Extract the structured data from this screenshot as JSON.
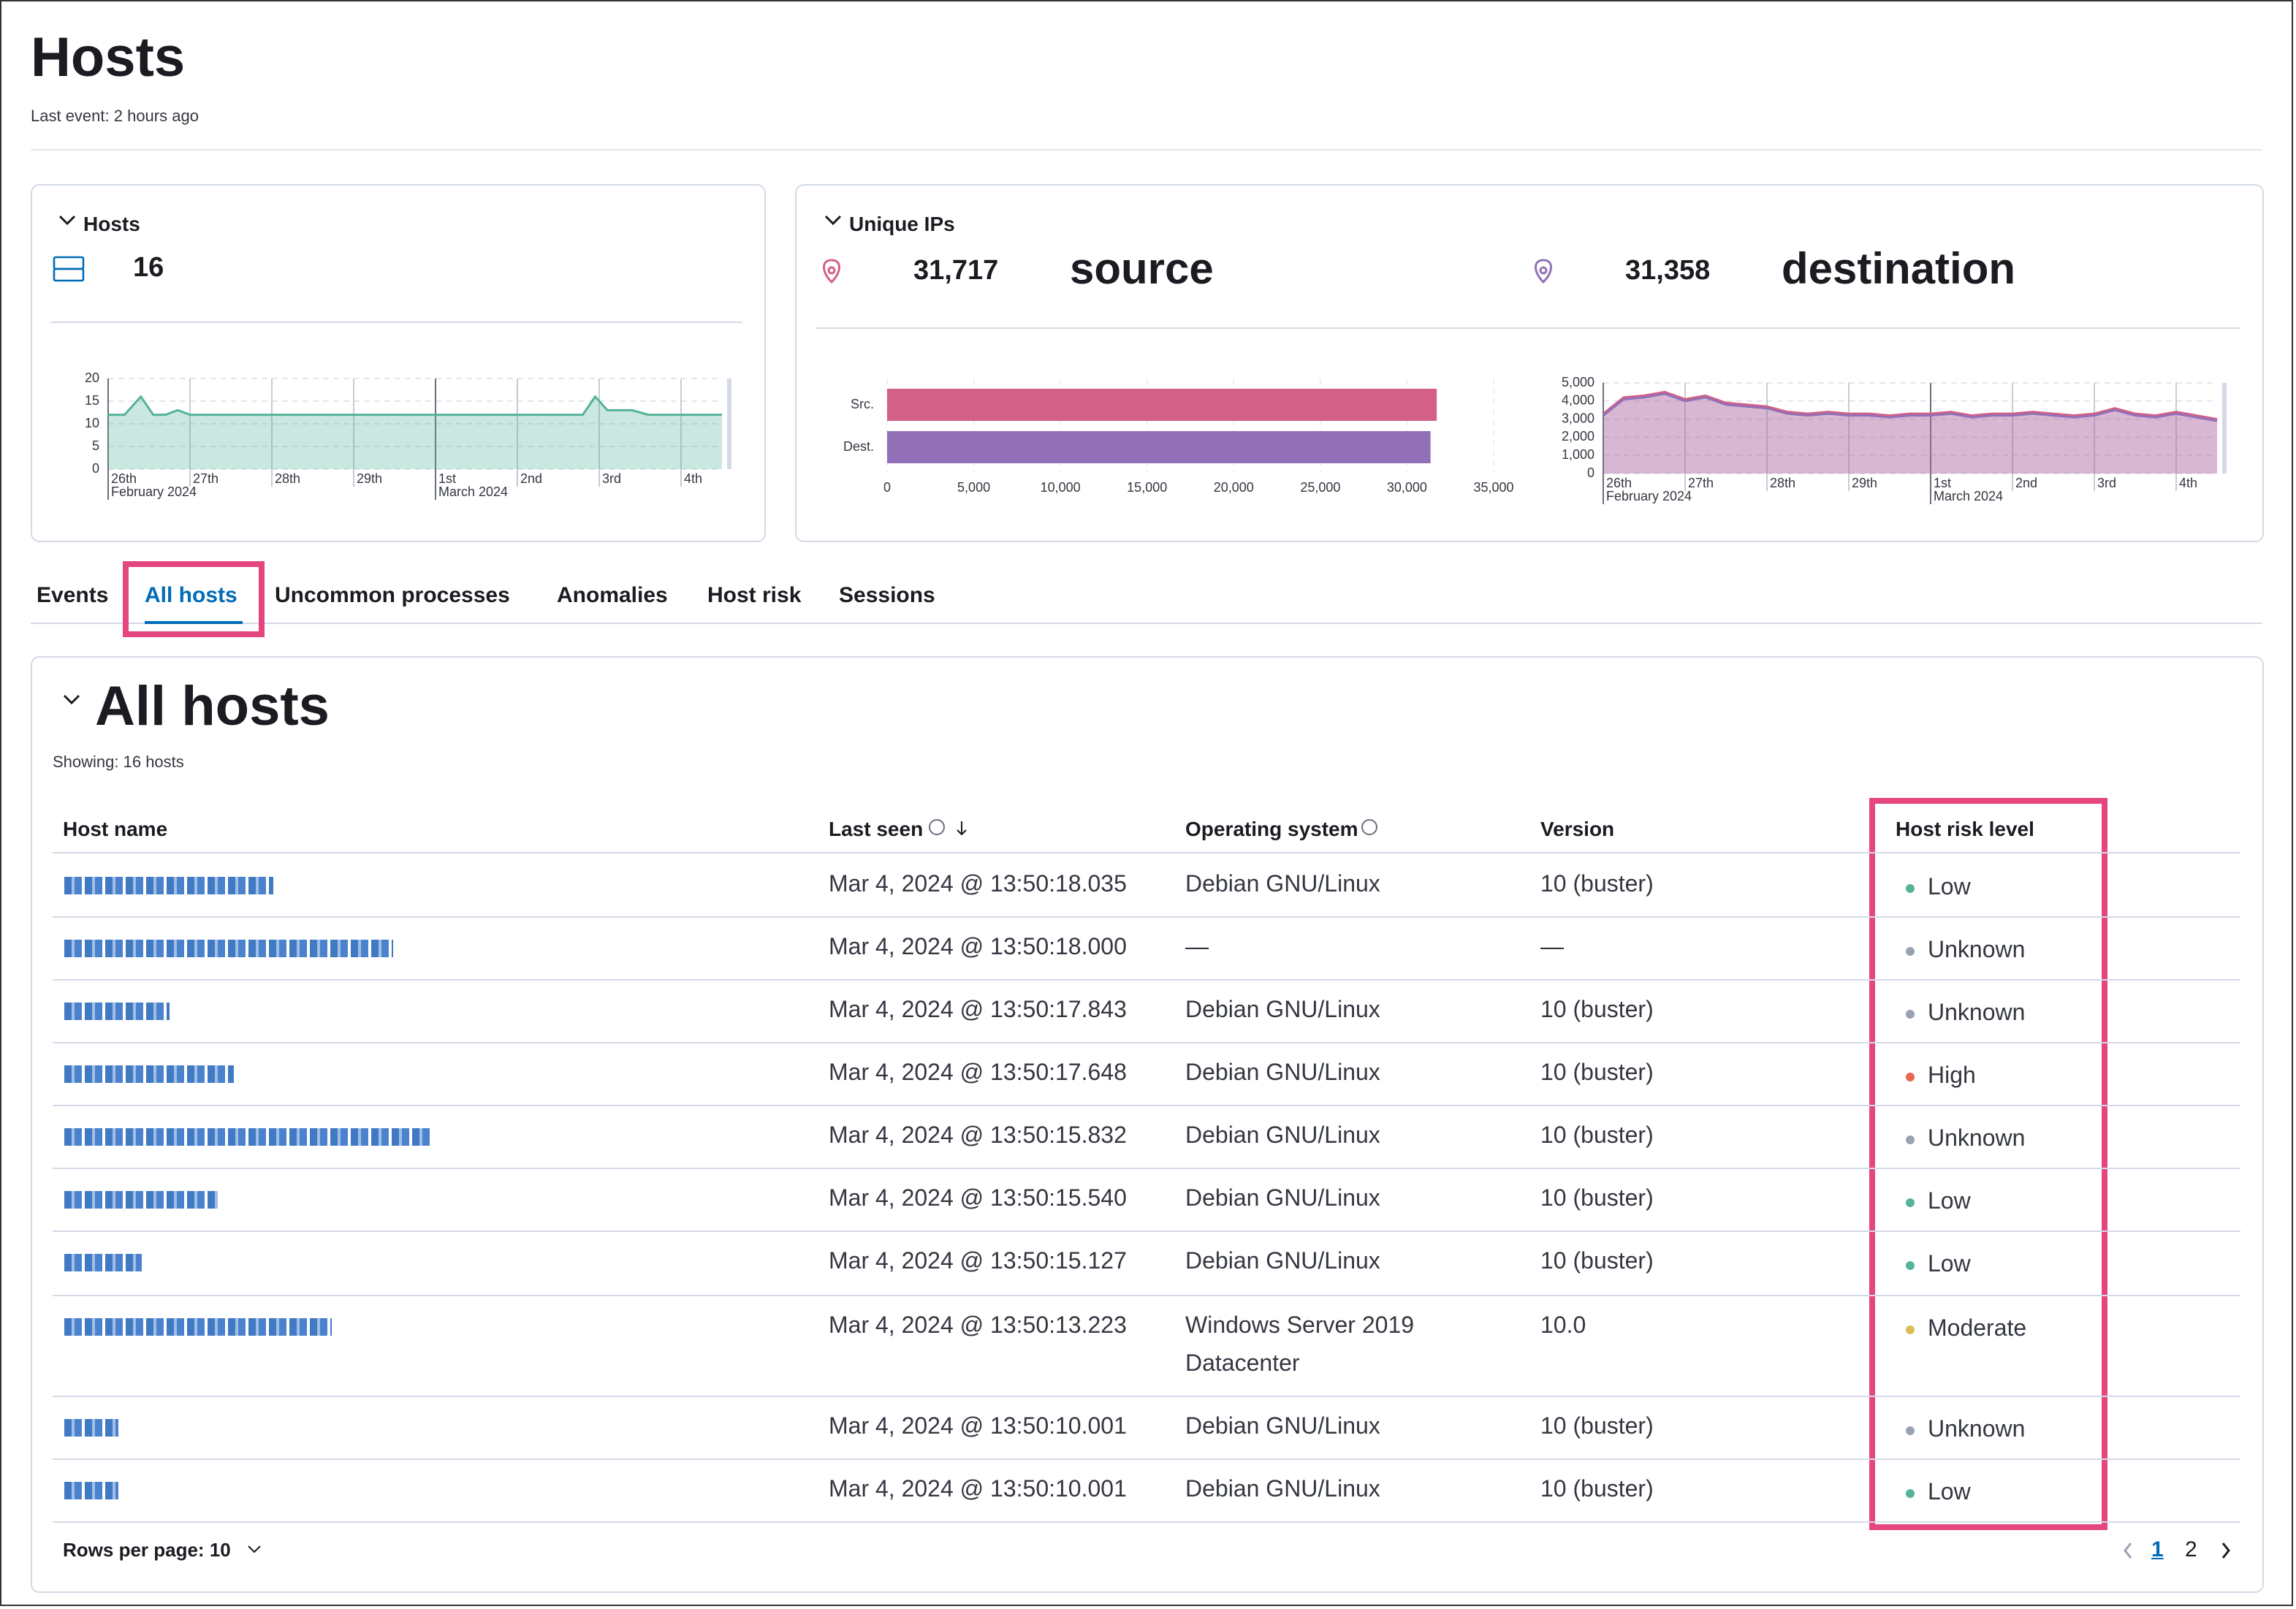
{
  "header": {
    "title": "Hosts",
    "subtitle": "Last event: 2 hours ago"
  },
  "hosts_panel": {
    "title": "Hosts",
    "value": "16"
  },
  "ips_panel": {
    "title": "Unique IPs",
    "source_value": "31,717",
    "source_label": "source",
    "destination_value": "31,358",
    "destination_label": "destination"
  },
  "chart_data": [
    {
      "type": "area",
      "color": "#54b399",
      "xlim": [
        0,
        7.5
      ],
      "ylim": [
        0,
        20
      ],
      "yticks": [
        0,
        5,
        10,
        15,
        20
      ],
      "xticks": [
        {
          "value": 0,
          "label": "26th"
        },
        {
          "value": 1,
          "label": "27th"
        },
        {
          "value": 2,
          "label": "28th"
        },
        {
          "value": 3,
          "label": "29th"
        },
        {
          "value": 4,
          "label": "1st"
        },
        {
          "value": 5,
          "label": "2nd"
        },
        {
          "value": 6,
          "label": "3rd"
        },
        {
          "value": 7,
          "label": "4th"
        }
      ],
      "month_labels": [
        {
          "value": 0,
          "label": "February 2024"
        },
        {
          "value": 4,
          "label": "March 2024"
        }
      ],
      "x": [
        0,
        0.2,
        0.4,
        0.55,
        0.7,
        0.85,
        1.0,
        2,
        3,
        4,
        5,
        5.8,
        5.95,
        6.1,
        6.4,
        6.6,
        7,
        7.5
      ],
      "values": [
        12,
        12,
        16,
        12,
        12,
        13,
        12,
        12,
        12,
        12,
        12,
        12,
        16,
        13,
        13,
        12,
        12,
        12
      ]
    },
    {
      "type": "hbar",
      "categories": [
        "Src.",
        "Dest."
      ],
      "values": [
        31717,
        31358
      ],
      "colors": [
        "#d36086",
        "#9170b8"
      ],
      "xlim": [
        0,
        35000
      ],
      "xticks": [
        0,
        {
          "value": 5000,
          "label": "5,000"
        },
        {
          "value": 10000,
          "label": "10,000"
        },
        {
          "value": 15000,
          "label": "15,000"
        },
        {
          "value": 20000,
          "label": "20,000"
        },
        {
          "value": 25000,
          "label": "25,000"
        },
        {
          "value": 30000,
          "label": "30,000"
        },
        {
          "value": 35000,
          "label": "35,000"
        }
      ]
    },
    {
      "type": "area",
      "xlim": [
        0,
        7.5
      ],
      "ylim": [
        0,
        5000
      ],
      "yticks": [
        0,
        {
          "value": 1000,
          "label": "1,000"
        },
        {
          "value": 2000,
          "label": "2,000"
        },
        {
          "value": 3000,
          "label": "3,000"
        },
        {
          "value": 4000,
          "label": "4,000"
        },
        {
          "value": 5000,
          "label": "5,000"
        }
      ],
      "xticks": [
        {
          "value": 0,
          "label": "26th"
        },
        {
          "value": 1,
          "label": "27th"
        },
        {
          "value": 2,
          "label": "28th"
        },
        {
          "value": 3,
          "label": "29th"
        },
        {
          "value": 4,
          "label": "1st"
        },
        {
          "value": 5,
          "label": "2nd"
        },
        {
          "value": 6,
          "label": "3rd"
        },
        {
          "value": 7,
          "label": "4th"
        }
      ],
      "month_labels": [
        {
          "value": 0,
          "label": "February 2024"
        },
        {
          "value": 4,
          "label": "March 2024"
        }
      ],
      "x": [
        0,
        0.25,
        0.5,
        0.75,
        1,
        1.25,
        1.5,
        1.75,
        2,
        2.25,
        2.5,
        2.75,
        3,
        3.25,
        3.5,
        3.75,
        4,
        4.25,
        4.5,
        4.75,
        5,
        5.25,
        5.5,
        5.75,
        6,
        6.25,
        6.5,
        6.75,
        7,
        7.25,
        7.5
      ],
      "series": [
        {
          "color": "#d36086",
          "values": [
            3300,
            4200,
            4300,
            4500,
            4100,
            4300,
            3900,
            3800,
            3700,
            3400,
            3300,
            3400,
            3300,
            3300,
            3200,
            3300,
            3300,
            3400,
            3200,
            3300,
            3300,
            3400,
            3300,
            3200,
            3300,
            3600,
            3300,
            3200,
            3400,
            3200,
            3000
          ]
        },
        {
          "color": "#9170b8",
          "values": [
            3200,
            4100,
            4200,
            4400,
            4000,
            4200,
            3800,
            3700,
            3600,
            3300,
            3200,
            3300,
            3200,
            3200,
            3100,
            3200,
            3200,
            3300,
            3100,
            3200,
            3200,
            3300,
            3200,
            3100,
            3200,
            3500,
            3200,
            3100,
            3300,
            3100,
            2900
          ]
        }
      ]
    }
  ],
  "tabs": {
    "items": [
      "Events",
      "All hosts",
      "Uncommon processes",
      "Anomalies",
      "Host risk",
      "Sessions"
    ],
    "active": 1
  },
  "table": {
    "title": "All hosts",
    "subtitle": "Showing: 16 hosts",
    "columns": [
      "Host name",
      "Last seen",
      "Operating system",
      "Version",
      "Host risk level"
    ],
    "rows": [
      [
        "Mar 4, 2024 @ 13:50:18.035",
        "Debian GNU/Linux",
        "10 (buster)",
        "Low"
      ],
      [
        "Mar 4, 2024 @ 13:50:18.000",
        "—",
        "—",
        "Unknown"
      ],
      [
        "Mar 4, 2024 @ 13:50:17.843",
        "Debian GNU/Linux",
        "10 (buster)",
        "Unknown"
      ],
      [
        "Mar 4, 2024 @ 13:50:17.648",
        "Debian GNU/Linux",
        "10 (buster)",
        "High"
      ],
      [
        "Mar 4, 2024 @ 13:50:15.832",
        "Debian GNU/Linux",
        "10 (buster)",
        "Unknown"
      ],
      [
        "Mar 4, 2024 @ 13:50:15.540",
        "Debian GNU/Linux",
        "10 (buster)",
        "Low"
      ],
      [
        "Mar 4, 2024 @ 13:50:15.127",
        "Debian GNU/Linux",
        "10 (buster)",
        "Low"
      ],
      [
        "Mar 4, 2024 @ 13:50:13.223",
        "Windows Server 2019 Datacenter",
        "10.0",
        "Moderate"
      ],
      [
        "Mar 4, 2024 @ 13:50:10.001",
        "Debian GNU/Linux",
        "10 (buster)",
        "Unknown"
      ],
      [
        "Mar 4, 2024 @ 13:50:10.001",
        "Debian GNU/Linux",
        "10 (buster)",
        "Low"
      ]
    ],
    "rows_per_page": "Rows per page: 10",
    "pages": [
      "1",
      "2"
    ]
  }
}
